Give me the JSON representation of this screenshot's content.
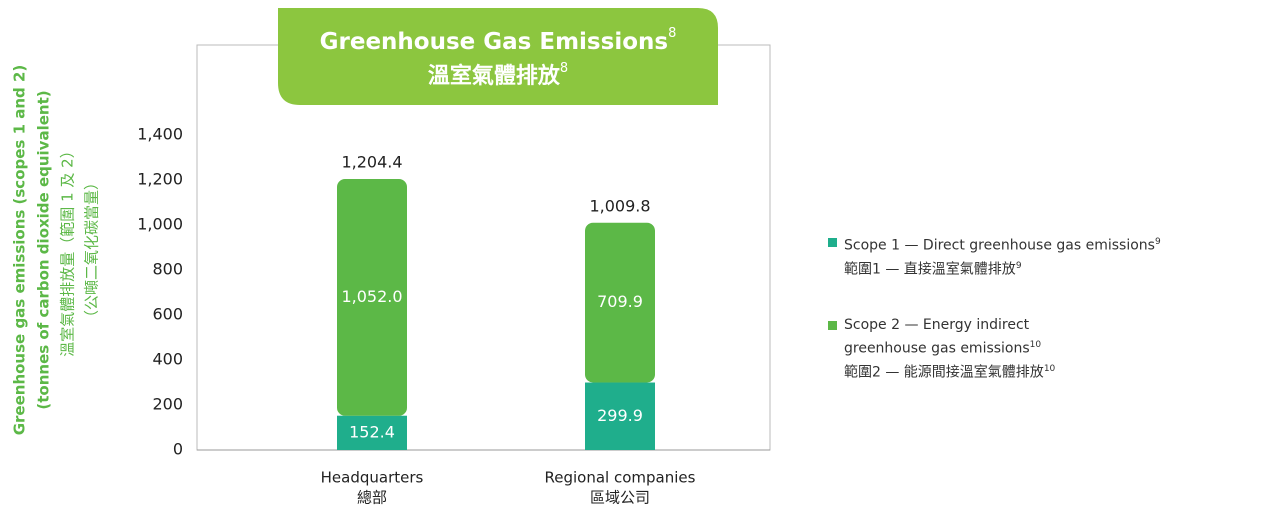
{
  "chart_data": {
    "type": "stacked_bar",
    "title": "Greenhouse Gas Emissions",
    "title_zh": "溫室氣體排放",
    "title_footnote": "8",
    "y_label": [
      "Greenhouse gas emissions (scopes 1 and 2)",
      "(tonnes of carbon dioxide equivalent)",
      "溫室氣體排放量（範圍 1 及 2）",
      "（公噸二氧化碳當量）"
    ],
    "categories": [
      "Headquarters",
      "Regional companies"
    ],
    "categories_zh": [
      "總部",
      "區域公司"
    ],
    "series": [
      {
        "name": "Scope 1 — Direct greenhouse gas emissions",
        "name_zh": "範圍1 — 直接溫室氣體排放",
        "footnote": "9",
        "color": "#1fae8c",
        "values": [
          152.4,
          299.9
        ],
        "value_labels": [
          "152.4",
          "299.9"
        ]
      },
      {
        "name": "Scope 2 — Energy indirect greenhouse gas emissions",
        "name_zh": "範圍2 — 能源間接溫室氣體排放",
        "footnote": "10",
        "color": "#5cb847",
        "values": [
          1052.0,
          709.9
        ],
        "value_labels": [
          "1,052.0",
          "709.9"
        ]
      }
    ],
    "total_labels": [
      "1,204.4",
      "1,009.8"
    ],
    "ylim": [
      0,
      1800
    ],
    "yticks": [
      0,
      200,
      400,
      600,
      800,
      {
        "value": 1000,
        "label": "1,000"
      },
      {
        "value": 1200,
        "label": "1,200"
      },
      {
        "value": 1400,
        "label": "1,400"
      }
    ],
    "legend": "right"
  }
}
